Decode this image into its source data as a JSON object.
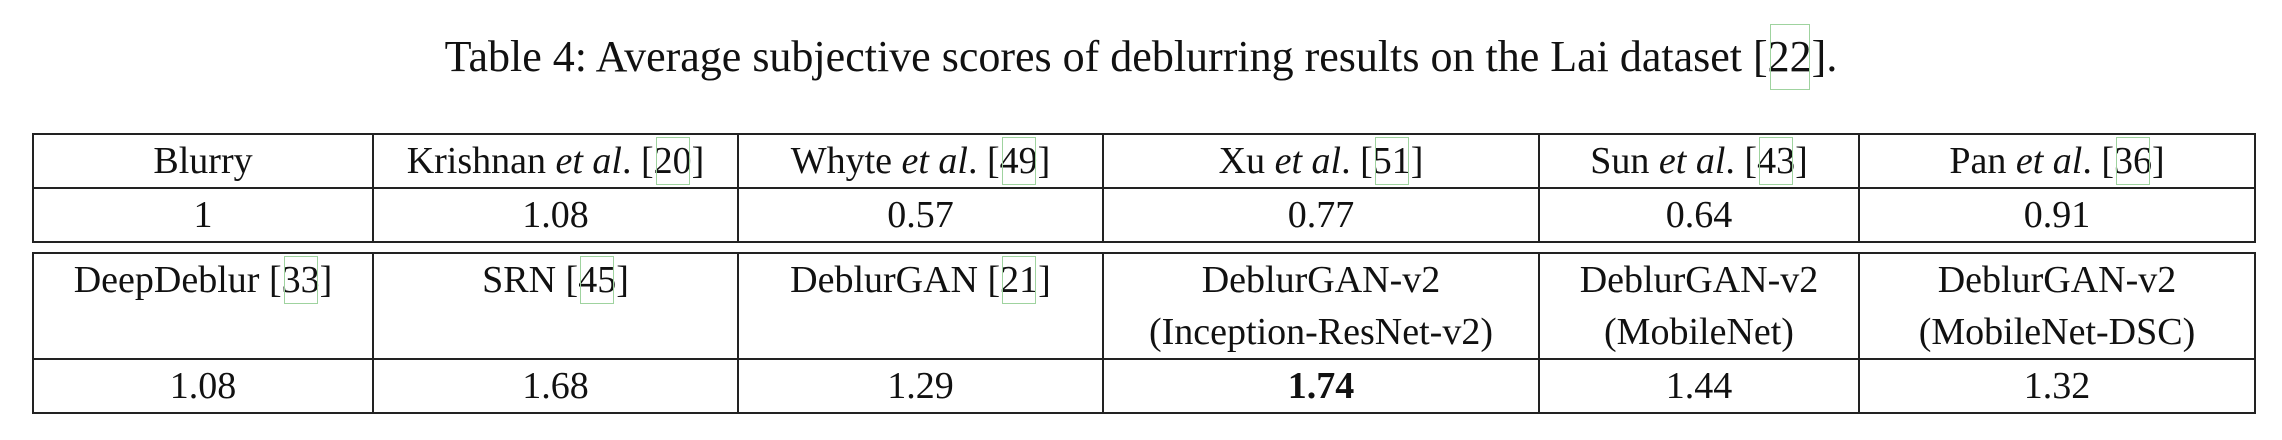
{
  "caption": {
    "label": "Table 4:",
    "text": "Average subjective scores of deblurring results on the Lai dataset",
    "cite": "22",
    "end": "."
  },
  "table1": {
    "headers": [
      {
        "name": "Blurry",
        "etal": "",
        "cite": ""
      },
      {
        "name": "Krishnan",
        "etal": "et al",
        "cite": "20"
      },
      {
        "name": "Whyte",
        "etal": "et al",
        "cite": "49"
      },
      {
        "name": "Xu",
        "etal": "et al",
        "cite": "51"
      },
      {
        "name": "Sun",
        "etal": "et al",
        "cite": "43"
      },
      {
        "name": "Pan",
        "etal": "et al",
        "cite": "36"
      }
    ],
    "values": [
      "1",
      "1.08",
      "0.57",
      "0.77",
      "0.64",
      "0.91"
    ]
  },
  "table2": {
    "headers": [
      {
        "line1": "DeepDeblur",
        "cite": "33",
        "line2": ""
      },
      {
        "line1": "SRN",
        "cite": "45",
        "line2": ""
      },
      {
        "line1": "DeblurGAN",
        "cite": "21",
        "line2": ""
      },
      {
        "line1": "DeblurGAN-v2",
        "cite": "",
        "line2": "(Inception-ResNet-v2)"
      },
      {
        "line1": "DeblurGAN-v2",
        "cite": "",
        "line2": "(MobileNet)"
      },
      {
        "line1": "DeblurGAN-v2",
        "cite": "",
        "line2": "(MobileNet-DSC)"
      }
    ],
    "values": [
      "1.08",
      "1.68",
      "1.29",
      "1.74",
      "1.44",
      "1.32"
    ],
    "bold_index": 3
  }
}
